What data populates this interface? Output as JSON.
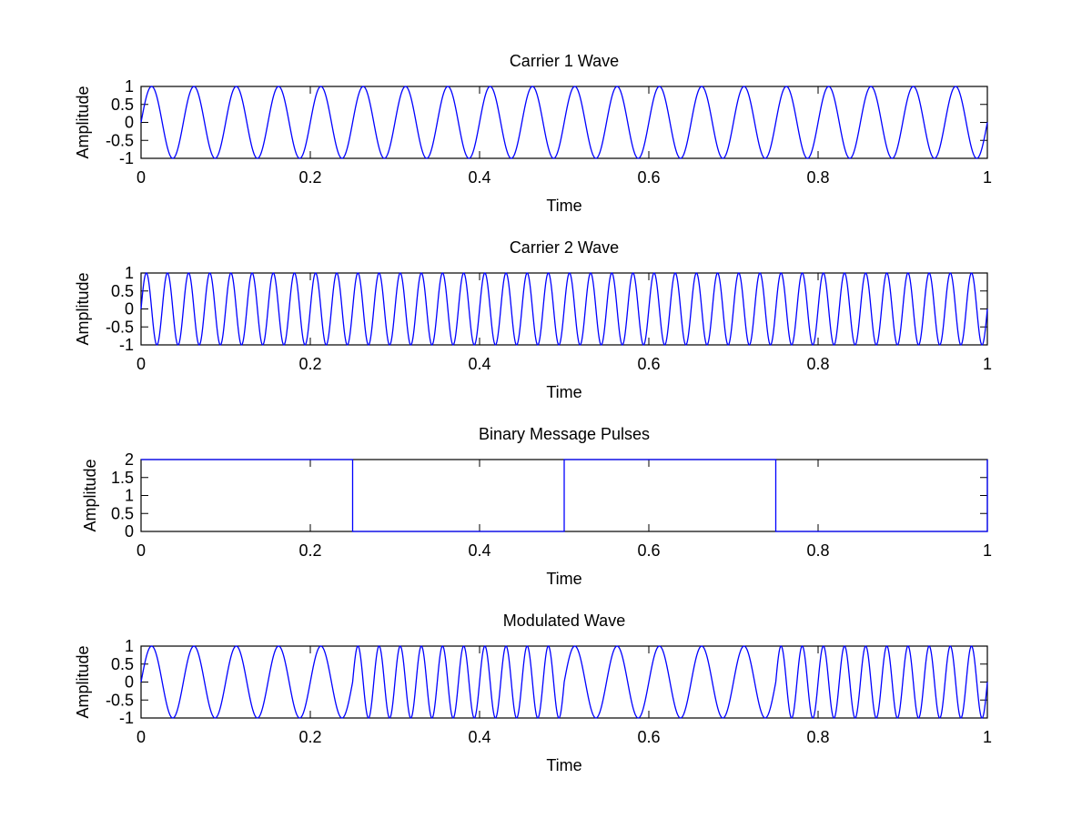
{
  "figure": {
    "background": "#ffffff",
    "line_color": "#0000ff"
  },
  "chart_data": [
    {
      "type": "line",
      "title": "Carrier 1 Wave",
      "xlabel": "Time",
      "ylabel": "Amplitude",
      "xlim": [
        0,
        1
      ],
      "ylim": [
        -1,
        1
      ],
      "x_ticks": [
        "0",
        "0.2",
        "0.4",
        "0.6",
        "0.8",
        "1"
      ],
      "y_ticks": [
        "1",
        "0.5",
        "0",
        "-0.5",
        "-1"
      ],
      "grid": false,
      "function": "sin(2*pi*f*t)",
      "frequency_hz": 20,
      "series": [
        {
          "color": "#0000ff"
        }
      ]
    },
    {
      "type": "line",
      "title": "Carrier 2 Wave",
      "xlabel": "Time",
      "ylabel": "Amplitude",
      "xlim": [
        0,
        1
      ],
      "ylim": [
        -1,
        1
      ],
      "x_ticks": [
        "0",
        "0.2",
        "0.4",
        "0.6",
        "0.8",
        "1"
      ],
      "y_ticks": [
        "1",
        "0.5",
        "0",
        "-0.5",
        "-1"
      ],
      "grid": false,
      "function": "sin(2*pi*f*t)",
      "frequency_hz": 40,
      "series": [
        {
          "color": "#0000ff"
        }
      ]
    },
    {
      "type": "line",
      "title": "Binary Message Pulses",
      "xlabel": "Time",
      "ylabel": "Amplitude",
      "xlim": [
        0,
        1
      ],
      "ylim": [
        0,
        2
      ],
      "x_ticks": [
        "0",
        "0.2",
        "0.4",
        "0.6",
        "0.8",
        "1"
      ],
      "y_ticks": [
        "2",
        "1.5",
        "1",
        "0.5",
        "0"
      ],
      "grid": false,
      "series": [
        {
          "color": "#0000ff",
          "x": [
            0,
            0.25,
            0.25,
            0.5,
            0.5,
            0.75,
            0.75,
            1,
            1
          ],
          "y": [
            2,
            2,
            0,
            0,
            2,
            2,
            0,
            0,
            2
          ]
        }
      ]
    },
    {
      "type": "line",
      "title": "Modulated Wave",
      "xlabel": "Time",
      "ylabel": "Amplitude",
      "xlim": [
        0,
        1
      ],
      "ylim": [
        -1,
        1
      ],
      "x_ticks": [
        "0",
        "0.2",
        "0.4",
        "0.6",
        "0.8",
        "1"
      ],
      "y_ticks": [
        "1",
        "0.5",
        "0",
        "-0.5",
        "-1"
      ],
      "grid": false,
      "function": "piecewise sin(2*pi*f*t)",
      "segments": [
        {
          "x_start": 0,
          "x_end": 0.25,
          "frequency_hz": 20
        },
        {
          "x_start": 0.25,
          "x_end": 0.5,
          "frequency_hz": 40
        },
        {
          "x_start": 0.5,
          "x_end": 0.75,
          "frequency_hz": 20
        },
        {
          "x_start": 0.75,
          "x_end": 1,
          "frequency_hz": 40
        }
      ],
      "series": [
        {
          "color": "#0000ff"
        }
      ]
    }
  ]
}
